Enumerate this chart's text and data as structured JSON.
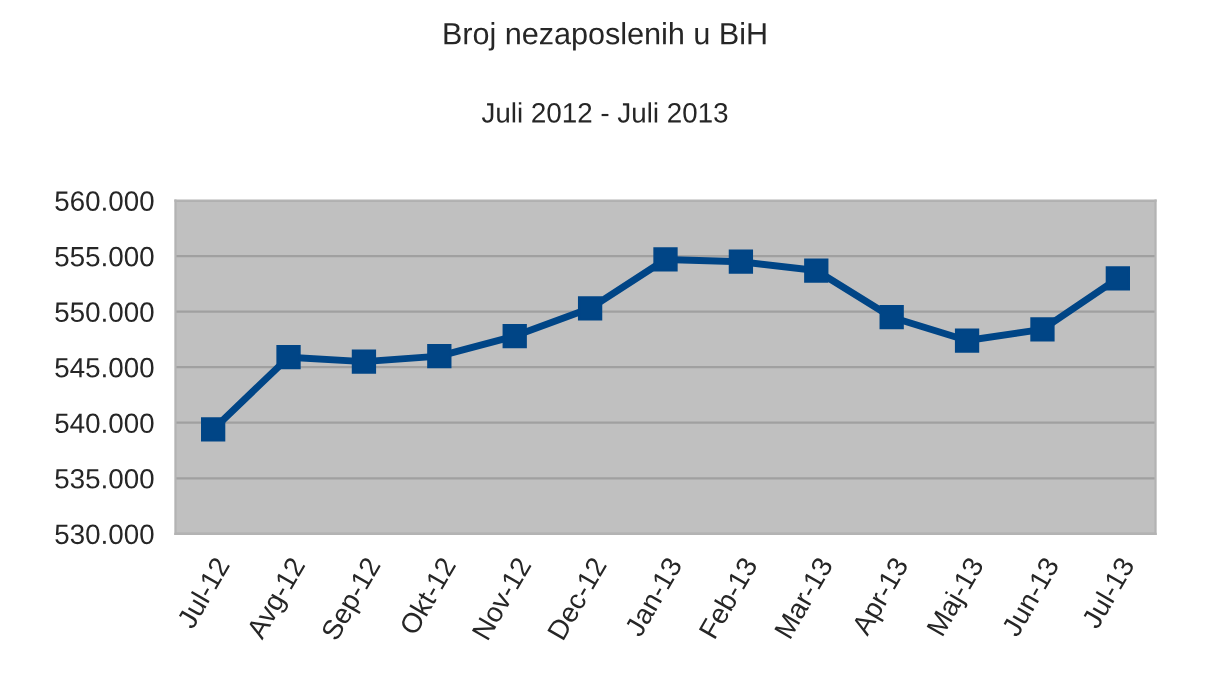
{
  "chart_data": {
    "type": "line",
    "title": "Broj nezaposlenih u BiH",
    "subtitle": "Juli 2012 - Juli 2013",
    "categories": [
      "Jul-12",
      "Avg-12",
      "Sep-12",
      "Okt-12",
      "Nov-12",
      "Dec-12",
      "Jan-13",
      "Feb-13",
      "Mar-13",
      "Apr-13",
      "Maj-13",
      "Jun-13",
      "Jul-13"
    ],
    "series": [
      {
        "color": "#004586",
        "values": [
          539400,
          545900,
          545500,
          546000,
          547800,
          550300,
          554700,
          554500,
          553700,
          549500,
          547400,
          548400,
          553000
        ]
      }
    ],
    "ylim": [
      530000,
      560000
    ],
    "yticks": [
      {
        "value": 530000,
        "label": "530.000"
      },
      {
        "value": 535000,
        "label": "535.000"
      },
      {
        "value": 540000,
        "label": "540.000"
      },
      {
        "value": 545000,
        "label": "545.000"
      },
      {
        "value": 550000,
        "label": "550.000"
      },
      {
        "value": 555000,
        "label": "555.000"
      },
      {
        "value": 560000,
        "label": "560.000"
      }
    ],
    "grid": "y",
    "marker": "square",
    "line_style": "solid",
    "legend": false
  }
}
